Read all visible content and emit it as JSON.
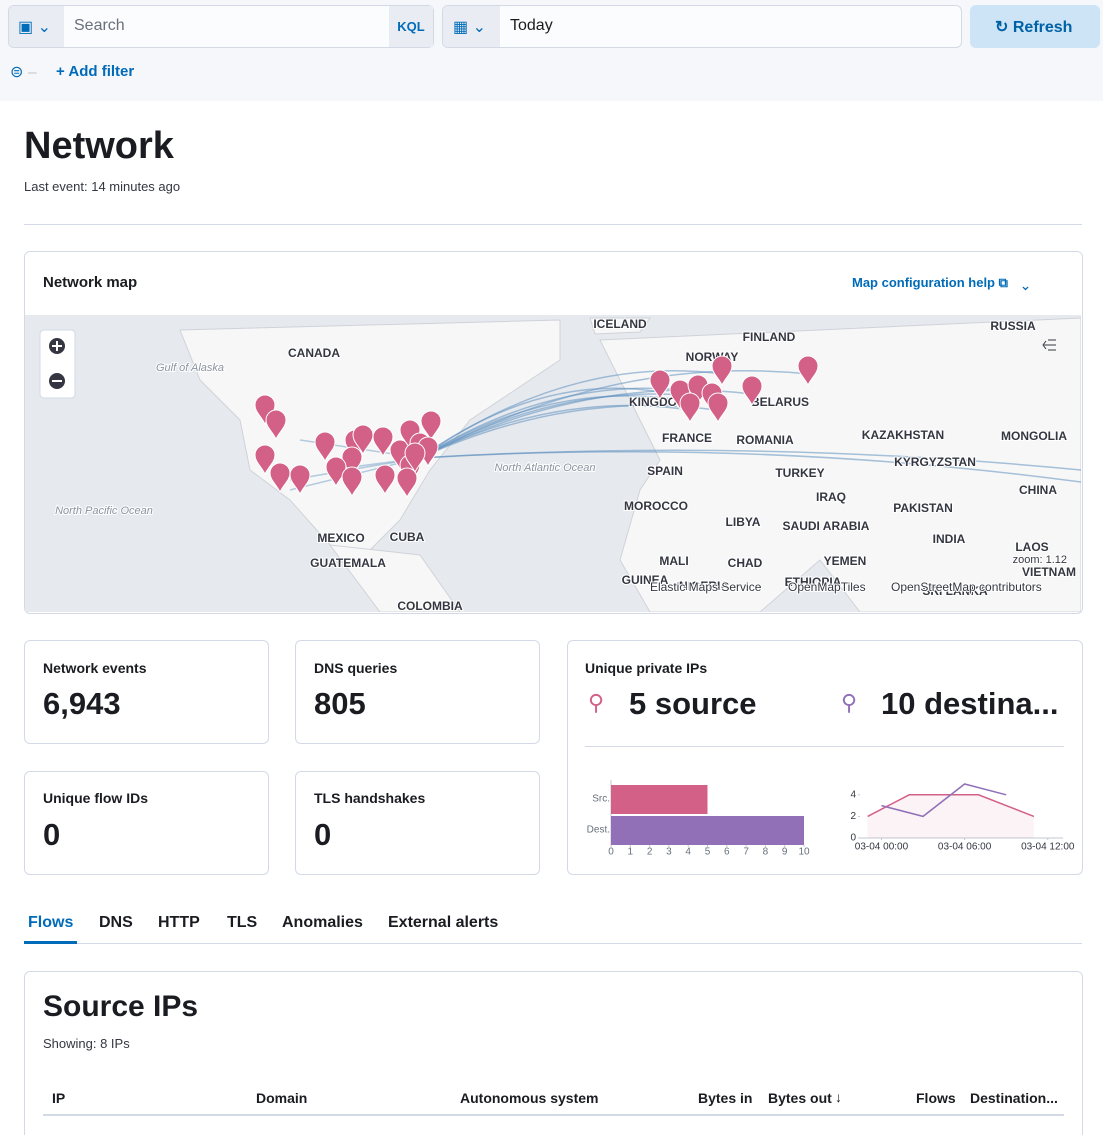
{
  "query_bar": {
    "search_placeholder": "Search",
    "language": "KQL",
    "date": "Today",
    "refresh": "Refresh",
    "add_filter": "+ Add filter"
  },
  "header": {
    "title": "Network",
    "last_event": "Last event: 14 minutes ago"
  },
  "map_panel": {
    "title": "Network map",
    "help_link": "Map configuration help",
    "labels": [
      "ICELAND",
      "RUSSIA",
      "CANADA",
      "FINLAND",
      "NORWAY",
      "Gulf of Alaska",
      "KINGDOM",
      "BELARUS",
      "FRANCE",
      "ROMANIA",
      "KAZAKHSTAN",
      "MONGOLIA",
      "KYRGYZSTAN",
      "SPAIN",
      "TURKEY",
      "CHINA",
      "North Atlantic Ocean",
      "MOROCCO",
      "IRAQ",
      "PAKISTAN",
      "LIBYA",
      "SAUDI ARABIA",
      "INDIA",
      "LAOS",
      "VIETNAM",
      "YEMEN",
      "MALI",
      "CHAD",
      "MEXICO",
      "CUBA",
      "GUATEMALA",
      "North Pacific Ocean",
      "COLOMBIA",
      "GUINEA",
      "NIGERIA",
      "ETHIOPIA",
      "SRI LANKA"
    ],
    "zoom": "zoom: 1.12",
    "attribution": [
      "Elastic Maps Service",
      "OpenMapTiles",
      "OpenStreetMap contributors"
    ]
  },
  "stats": [
    {
      "label": "Network events",
      "value": "6,943"
    },
    {
      "label": "DNS queries",
      "value": "805"
    },
    {
      "label": "Unique flow IDs",
      "value": "0"
    },
    {
      "label": "TLS handshakes",
      "value": "0"
    }
  ],
  "unique_private_ips": {
    "title": "Unique private IPs",
    "source": "5 source",
    "destination": "10 destina..."
  },
  "chart_data": [
    {
      "type": "bar",
      "categories": [
        "Src.",
        "Dest."
      ],
      "values": [
        5,
        10
      ],
      "colors": [
        "#d36086",
        "#9170b8"
      ],
      "xlim": [
        0,
        10
      ],
      "xticks": [
        0,
        1,
        2,
        3,
        4,
        5,
        6,
        7,
        8,
        9,
        10
      ]
    },
    {
      "type": "line",
      "series": [
        {
          "color": "#d36086",
          "x": [
            -1,
            2,
            7,
            11
          ],
          "values": [
            2,
            4,
            4,
            2
          ]
        },
        {
          "color": "#9170b8",
          "x": [
            0,
            3,
            6,
            9
          ],
          "values": [
            3,
            2,
            5,
            4
          ]
        }
      ],
      "xlim": [
        -2.2,
        13.1
      ],
      "xticks": [
        {
          "value": 0,
          "label": "03-04 00:00"
        },
        {
          "value": 6,
          "label": "03-04 06:00"
        },
        {
          "value": 12,
          "label": "03-04 12:00"
        }
      ],
      "ylim": [
        0,
        5
      ],
      "yticks": [
        0,
        2,
        4
      ]
    }
  ],
  "tabs": [
    "Flows",
    "DNS",
    "HTTP",
    "TLS",
    "Anomalies",
    "External alerts"
  ],
  "table": {
    "title": "Source IPs",
    "subtitle": "Showing: 8 IPs",
    "columns": [
      "IP",
      "Domain",
      "Autonomous system",
      "Bytes in",
      "Bytes out",
      "Flows",
      "Destination..."
    ]
  }
}
